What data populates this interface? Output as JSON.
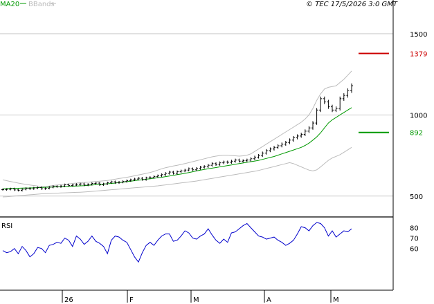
{
  "header": {
    "ma_label": "MA20",
    "bb_label": "BBands",
    "copyright": "© TEC 17/5/2026 3:0 GMT"
  },
  "rsi_label": "RSI",
  "colors": {
    "price": "#000000",
    "ma": "#009900",
    "bbands": "#bbbbbb",
    "resistance": "#cc0000",
    "support": "#009900",
    "rsi": "#0000cc",
    "grid": "#cccccc",
    "axis": "#000000"
  },
  "chart_data": [
    {
      "type": "ohlc",
      "y_axis_ticks": [
        "1500",
        "1000",
        "500"
      ],
      "y_tick_values": [
        1500,
        1000,
        500
      ],
      "ylim": [
        380,
        1640
      ],
      "x_tick_labels": [
        "26",
        "F",
        "M",
        "A",
        "M"
      ],
      "x_tick_index": [
        0,
        21,
        41,
        63,
        83
      ],
      "levels": [
        {
          "name": "resistance",
          "value": 1379,
          "label": "1379"
        },
        {
          "name": "support",
          "value": 892,
          "label": "892"
        }
      ],
      "series": [
        {
          "name": "price",
          "values": [
            540,
            542,
            545,
            538,
            535,
            542,
            548,
            545,
            550,
            552,
            545,
            548,
            555,
            560,
            558,
            562,
            570,
            565,
            568,
            572,
            575,
            568,
            572,
            578,
            580,
            570,
            575,
            582,
            588,
            582,
            586,
            590,
            595,
            600,
            605,
            610,
            602,
            612,
            615,
            620,
            625,
            632,
            640,
            648,
            640,
            650,
            655,
            660,
            668,
            662,
            670,
            678,
            682,
            690,
            700,
            695,
            705,
            710,
            708,
            715,
            722,
            715,
            718,
            722,
            730,
            740,
            750,
            765,
            780,
            790,
            800,
            810,
            820,
            830,
            845,
            860,
            870,
            880,
            900,
            920,
            950,
            1030,
            1100,
            1080,
            1050,
            1030,
            1040,
            1100,
            1120,
            1150,
            1180
          ]
        },
        {
          "name": "MA20",
          "values": [
            545,
            546,
            547,
            548,
            548,
            549,
            550,
            550,
            551,
            552,
            553,
            554,
            555,
            556,
            557,
            558,
            559,
            560,
            561,
            562,
            563,
            564,
            566,
            568,
            570,
            572,
            574,
            576,
            578,
            580,
            583,
            586,
            589,
            592,
            595,
            598,
            601,
            604,
            607,
            610,
            613,
            616,
            620,
            624,
            628,
            632,
            636,
            640,
            645,
            650,
            655,
            660,
            664,
            668,
            672,
            676,
            680,
            684,
            688,
            692,
            696,
            700,
            704,
            708,
            712,
            716,
            720,
            726,
            732,
            738,
            744,
            752,
            760,
            768,
            776,
            784,
            792,
            800,
            812,
            826,
            845,
            865,
            890,
            920,
            950,
            970,
            985,
            1000,
            1015,
            1030,
            1045
          ]
        },
        {
          "name": "BB upper",
          "values": [
            600,
            595,
            590,
            585,
            580,
            576,
            572,
            568,
            565,
            562,
            560,
            560,
            562,
            565,
            568,
            570,
            572,
            575,
            578,
            580,
            582,
            584,
            586,
            588,
            590,
            592,
            594,
            596,
            600,
            604,
            608,
            612,
            616,
            620,
            625,
            630,
            635,
            640,
            645,
            652,
            660,
            668,
            675,
            680,
            685,
            690,
            695,
            700,
            706,
            712,
            718,
            724,
            730,
            736,
            742,
            746,
            750,
            752,
            752,
            750,
            748,
            746,
            748,
            752,
            760,
            775,
            790,
            805,
            820,
            835,
            850,
            865,
            880,
            895,
            910,
            925,
            940,
            955,
            975,
            1000,
            1040,
            1090,
            1130,
            1160,
            1170,
            1175,
            1180,
            1200,
            1220,
            1245,
            1270
          ]
        },
        {
          "name": "BB lower",
          "values": [
            495,
            496,
            498,
            500,
            502,
            504,
            506,
            508,
            510,
            512,
            514,
            515,
            516,
            517,
            518,
            519,
            520,
            521,
            522,
            523,
            524,
            525,
            527,
            529,
            531,
            533,
            535,
            537,
            539,
            541,
            543,
            545,
            547,
            549,
            551,
            553,
            555,
            557,
            559,
            561,
            563,
            566,
            569,
            572,
            575,
            578,
            581,
            584,
            587,
            590,
            593,
            597,
            601,
            605,
            609,
            613,
            617,
            621,
            625,
            629,
            633,
            637,
            641,
            645,
            649,
            653,
            658,
            664,
            670,
            676,
            682,
            688,
            694,
            700,
            706,
            700,
            690,
            680,
            670,
            660,
            655,
            662,
            680,
            700,
            720,
            735,
            745,
            755,
            770,
            785,
            800
          ]
        }
      ]
    },
    {
      "type": "line",
      "title": "RSI",
      "y_axis_ticks": [
        "80",
        "70",
        "60"
      ],
      "y_tick_values": [
        80,
        70,
        60
      ],
      "ylim": [
        20,
        89
      ],
      "x_tick_labels": [
        "26",
        "F",
        "M",
        "A",
        "M"
      ],
      "x_tick_index": [
        0,
        21,
        41,
        63,
        83
      ],
      "series": [
        {
          "name": "RSI",
          "values": [
            58,
            56,
            57,
            60,
            55,
            62,
            58,
            52,
            55,
            61,
            60,
            56,
            63,
            64,
            66,
            65,
            70,
            68,
            62,
            72,
            69,
            64,
            67,
            72,
            67,
            65,
            62,
            55,
            68,
            72,
            71,
            68,
            66,
            59,
            52,
            47,
            56,
            63,
            66,
            63,
            68,
            72,
            74,
            74,
            67,
            68,
            72,
            77,
            75,
            70,
            69,
            72,
            74,
            79,
            73,
            68,
            65,
            69,
            66,
            75,
            76,
            79,
            82,
            84,
            80,
            76,
            72,
            71,
            69,
            70,
            71,
            68,
            66,
            63,
            65,
            68,
            74,
            81,
            80,
            77,
            82,
            85,
            84,
            80,
            72,
            77,
            71,
            74,
            77,
            76,
            79
          ]
        }
      ]
    }
  ]
}
